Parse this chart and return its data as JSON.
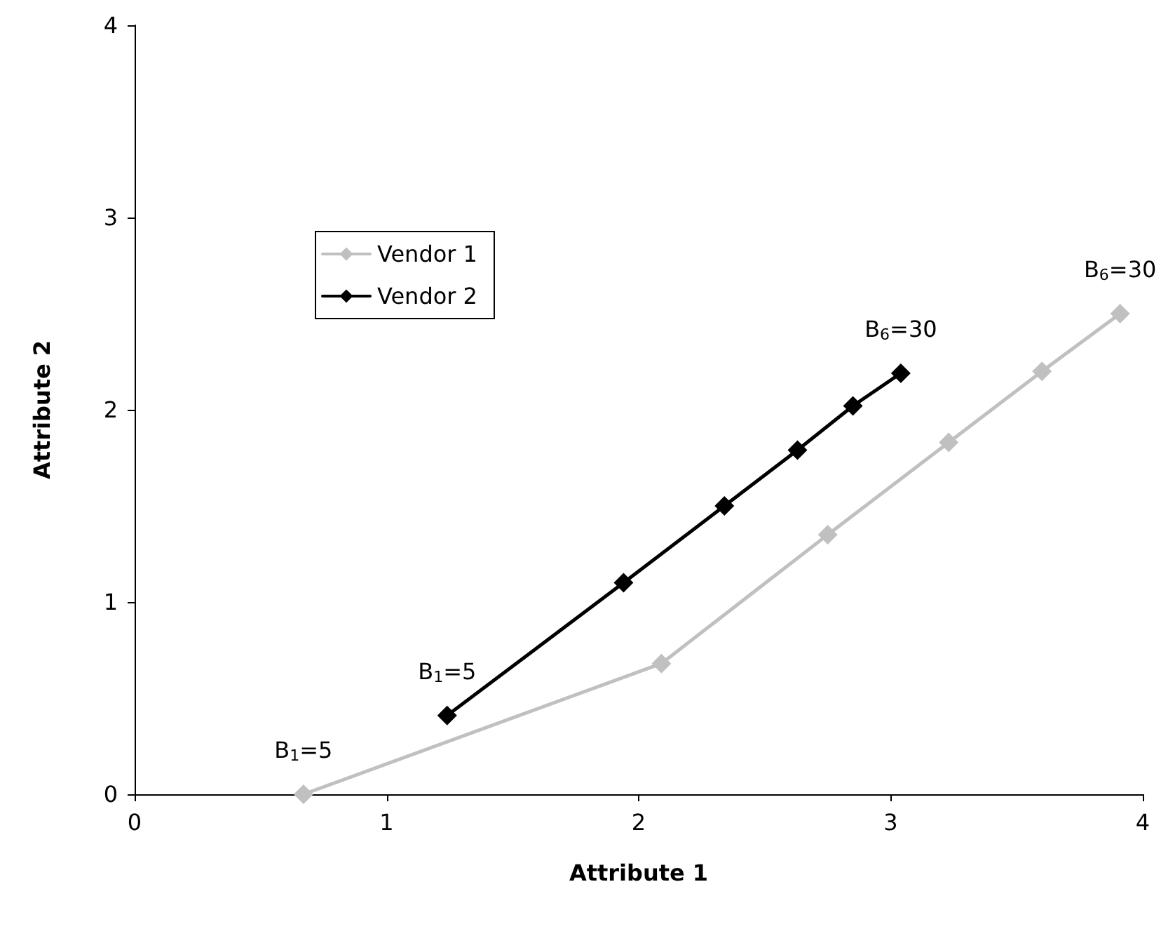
{
  "chart_data": {
    "type": "line",
    "xlabel": "Attribute 1",
    "ylabel": "Attribute 2",
    "xlim": [
      0,
      4
    ],
    "xticks": [
      0,
      1,
      2,
      3,
      4
    ],
    "ylim": [
      0,
      4
    ],
    "yticks": [
      0,
      1,
      2,
      3,
      4
    ],
    "grid": false,
    "legend": "top left",
    "marker": "diamond",
    "line_style": "solid",
    "series": [
      {
        "name": "Vendor 1",
        "color": "#c0c0c0",
        "x": [
          0.67,
          2.09,
          2.75,
          3.23,
          3.6,
          3.91
        ],
        "values": [
          0,
          0.68,
          1.35,
          1.83,
          2.2,
          2.5
        ]
      },
      {
        "name": "Vendor 2",
        "color": "#000000",
        "x": [
          1.24,
          1.94,
          2.34,
          2.63,
          2.85,
          3.04
        ],
        "values": [
          0.41,
          1.1,
          1.5,
          1.79,
          2.02,
          2.19
        ]
      }
    ],
    "annotations": [
      {
        "text": "B$_{1}$=5",
        "x": 0.67,
        "y": 0
      },
      {
        "text": "B$_{1}$=5",
        "x": 1.24,
        "y": 0.41
      },
      {
        "text": "B$_{6}$=30",
        "x": 3.04,
        "y": 2.19
      },
      {
        "text": "B$_{6}$=30",
        "x": 3.91,
        "y": 2.5
      }
    ]
  }
}
